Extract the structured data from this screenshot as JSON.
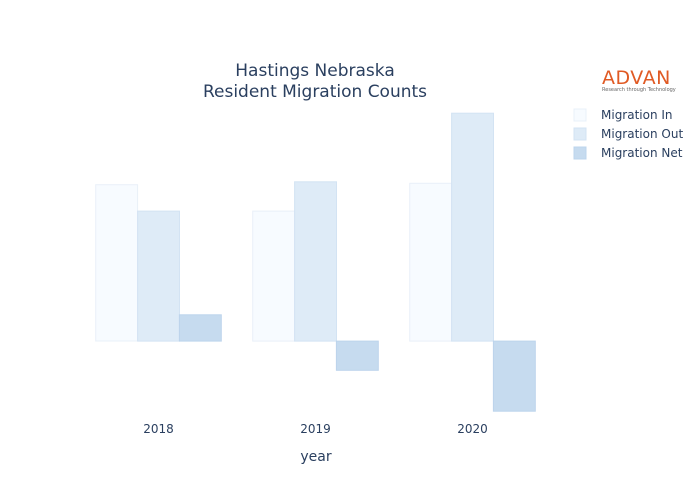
{
  "chart_data": {
    "type": "bar",
    "title": [
      "Hastings Nebraska",
      "Resident Migration Counts"
    ],
    "xlabel": "year",
    "ylabel": "",
    "categories": [
      "2018",
      "2019",
      "2020"
    ],
    "series": [
      {
        "name": "Migration In",
        "values": [
          1070,
          890,
          1080
        ],
        "color": "#f7fbff",
        "stroke": "#e9f0f8"
      },
      {
        "name": "Migration Out",
        "values": [
          890,
          1090,
          1560
        ],
        "color": "#deebf7",
        "stroke": "#d3e3f3"
      },
      {
        "name": "Migration Net",
        "values": [
          180,
          -200,
          -480
        ],
        "color": "#c6dbef",
        "stroke": "#bcd4ec"
      }
    ],
    "ylim": [
      -540,
      1650
    ],
    "grid": false,
    "y_tick_labels_shown": false,
    "legend_position": "top-right"
  },
  "logo": {
    "brand": "ADVAN",
    "tagline": "Research through Technology"
  }
}
